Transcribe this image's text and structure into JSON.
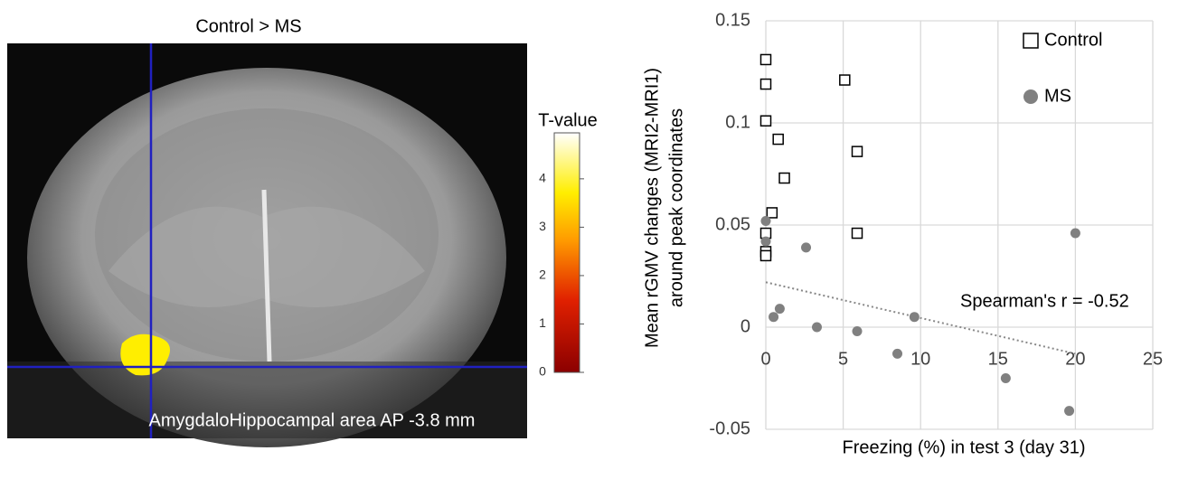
{
  "chart_data": [
    {
      "type": "image",
      "title": "Control > MS",
      "caption": "AmygdaloHippocampal area   AP -3.8 mm",
      "colorbar": {
        "label": "T-value",
        "lim": [
          0,
          4.95
        ],
        "ticks": [
          0,
          1,
          2,
          3,
          4
        ]
      }
    },
    {
      "type": "scatter",
      "xlabel": "Freezing (%) in test 3 (day 31)",
      "ylabel": [
        "Mean rGMV changes (MRI2-MRI1)",
        "around peak coordinates"
      ],
      "xlim": [
        0,
        25
      ],
      "xticks": [
        0,
        5,
        10,
        15,
        20,
        25
      ],
      "ylim": [
        -0.05,
        0.15
      ],
      "yticks": [
        -0.05,
        0,
        0.05,
        0.1,
        0.15
      ],
      "grid": true,
      "legend": "upper right",
      "series": [
        {
          "name": "Control",
          "marker": "square",
          "color": "#000000",
          "x": [
            0,
            0,
            0,
            0.8,
            5.1,
            5.9,
            1.2,
            0.4,
            0,
            5.9,
            0,
            0
          ],
          "values": [
            0.131,
            0.119,
            0.101,
            0.092,
            0.121,
            0.086,
            0.073,
            0.056,
            0.046,
            0.046,
            0.037,
            0.035
          ]
        },
        {
          "name": "MS",
          "marker": "circle",
          "color": "#808080",
          "x": [
            0,
            0,
            0.5,
            0.9,
            2.6,
            3.3,
            5.9,
            8.5,
            9.6,
            15.5,
            20.0,
            19.6
          ],
          "values": [
            0.052,
            0.042,
            0.005,
            0.009,
            0.039,
            0,
            -0.002,
            -0.013,
            0.005,
            -0.025,
            0.046,
            -0.041
          ]
        }
      ],
      "trendline": {
        "x": [
          0,
          20
        ],
        "values": [
          0.022,
          -0.013
        ]
      },
      "annotation": "Spearman's r = -0.52"
    }
  ]
}
